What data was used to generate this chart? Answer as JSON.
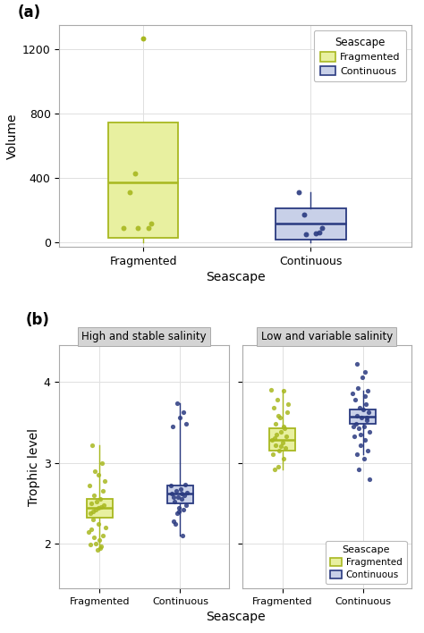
{
  "panel_a": {
    "title": "(a)",
    "xlabel": "Seascape",
    "ylabel": "Volume",
    "ylim": [
      -30,
      1350
    ],
    "yticks": [
      0,
      400,
      800,
      1200
    ],
    "frag_color": "#e8f0a0",
    "frag_edge": "#a8b820",
    "cont_color": "#c8d0e8",
    "cont_edge": "#2a3a80",
    "frag_box": {
      "q1": 30,
      "median": 375,
      "q3": 745,
      "whislo": 0,
      "whishi": 745
    },
    "frag_fliers": [
      1270
    ],
    "cont_box": {
      "q1": 15,
      "median": 115,
      "q3": 210,
      "whislo": 0,
      "whishi": 310
    },
    "cont_fliers": [],
    "frag_points_x": [
      0.95,
      0.92,
      1.05,
      0.97,
      1.03,
      0.88
    ],
    "frag_points_y": [
      430,
      310,
      115,
      90,
      90,
      90
    ],
    "cont_points_x": [
      1.93,
      2.07,
      1.97,
      2.03,
      1.96,
      2.05
    ],
    "cont_points_y": [
      310,
      90,
      50,
      55,
      170,
      60
    ],
    "categories": [
      "Fragmented",
      "Continuous"
    ],
    "xtick_pos": [
      1,
      2
    ]
  },
  "panel_b": {
    "title": "(b)",
    "xlabel": "Seascape",
    "ylabel": "Trophic level",
    "ylim": [
      1.45,
      4.45
    ],
    "yticks": [
      2,
      3,
      4
    ],
    "facets": [
      "High and stable salinity",
      "Low and variable salinity"
    ],
    "frag_color": "#e8f0a0",
    "frag_edge": "#a8b820",
    "cont_color": "#c8d0e8",
    "cont_edge": "#2a3a80",
    "high_stable": {
      "frag_box": {
        "q1": 2.32,
        "median": 2.44,
        "q3": 2.55,
        "whislo": 1.93,
        "whishi": 3.22
      },
      "cont_box": {
        "q1": 2.5,
        "median": 2.62,
        "q3": 2.72,
        "whislo": 2.1,
        "whishi": 3.73
      },
      "frag_pts_y": [
        2.38,
        2.4,
        2.42,
        2.44,
        2.46,
        2.48,
        2.5,
        2.52,
        2.55,
        2.6,
        2.65,
        2.72,
        2.78,
        2.85,
        2.9,
        3.0,
        3.22,
        1.93,
        1.97,
        1.99,
        2.0,
        2.05,
        2.08,
        2.15,
        2.2,
        2.25,
        2.3,
        2.1,
        2.18,
        1.95
      ],
      "frag_pts_x": [
        0.88,
        0.92,
        0.95,
        0.98,
        1.02,
        1.05,
        0.9,
        0.96,
        1.01,
        0.93,
        1.04,
        0.87,
        1.06,
        0.99,
        0.94,
        1.03,
        0.91,
        0.97,
        1.02,
        0.88,
        0.95,
        1.0,
        0.93,
        0.86,
        1.07,
        0.98,
        0.92,
        1.04,
        0.9,
        1.01
      ],
      "cont_pts_y": [
        2.28,
        2.38,
        2.42,
        2.45,
        2.48,
        2.52,
        2.55,
        2.58,
        2.6,
        2.62,
        2.63,
        2.65,
        2.68,
        2.72,
        2.73,
        2.25,
        2.1,
        3.45,
        3.48,
        3.55,
        3.62,
        3.73,
        2.58,
        2.62,
        2.4
      ],
      "cont_pts_x": [
        1.92,
        1.96,
        2.04,
        1.98,
        2.07,
        1.93,
        2.02,
        1.97,
        2.05,
        1.9,
        2.08,
        1.95,
        2.01,
        1.88,
        2.06,
        1.94,
        2.03,
        1.91,
        2.07,
        1.99,
        2.04,
        1.96,
        1.92,
        2.02,
        1.98
      ]
    },
    "low_variable": {
      "frag_box": {
        "q1": 3.15,
        "median": 3.28,
        "q3": 3.42,
        "whislo": 2.92,
        "whishi": 3.9
      },
      "cont_box": {
        "q1": 3.48,
        "median": 3.57,
        "q3": 3.65,
        "whislo": 3.1,
        "whishi": 3.88
      },
      "frag_pts_y": [
        2.92,
        2.95,
        3.05,
        3.1,
        3.15,
        3.18,
        3.22,
        3.25,
        3.28,
        3.32,
        3.35,
        3.38,
        3.42,
        3.48,
        3.55,
        3.62,
        3.68,
        3.78,
        3.88,
        3.9,
        3.72,
        3.58,
        3.45,
        3.3,
        3.2
      ],
      "frag_pts_x": [
        0.9,
        0.95,
        1.02,
        0.88,
        0.96,
        1.04,
        0.92,
        1.0,
        0.87,
        1.05,
        0.93,
        0.98,
        1.03,
        0.91,
        0.97,
        1.06,
        0.89,
        0.94,
        1.01,
        0.86,
        1.07,
        0.95,
        1.02,
        0.9,
        0.98
      ],
      "cont_pts_y": [
        3.1,
        3.15,
        3.22,
        3.28,
        3.32,
        3.38,
        3.42,
        3.45,
        3.48,
        3.52,
        3.55,
        3.58,
        3.62,
        3.65,
        3.68,
        3.72,
        3.78,
        3.82,
        3.85,
        3.88,
        3.92,
        4.05,
        4.12,
        4.22,
        3.35,
        2.8,
        2.92,
        3.05,
        3.45,
        3.55
      ],
      "cont_pts_x": [
        1.93,
        2.06,
        1.97,
        2.03,
        1.89,
        2.08,
        1.95,
        2.01,
        1.91,
        2.05,
        1.98,
        1.93,
        2.07,
        2.0,
        1.96,
        2.04,
        1.9,
        2.02,
        1.87,
        2.06,
        1.94,
        1.99,
        2.03,
        1.92,
        1.97,
        2.08,
        1.95,
        2.01,
        1.88,
        2.05
      ]
    }
  },
  "legend_title": "Seascape",
  "legend_frag": "Fragmented",
  "legend_cont": "Continuous",
  "bg_color": "white",
  "grid_color": "#e0e0e0",
  "spine_color": "#aaaaaa"
}
